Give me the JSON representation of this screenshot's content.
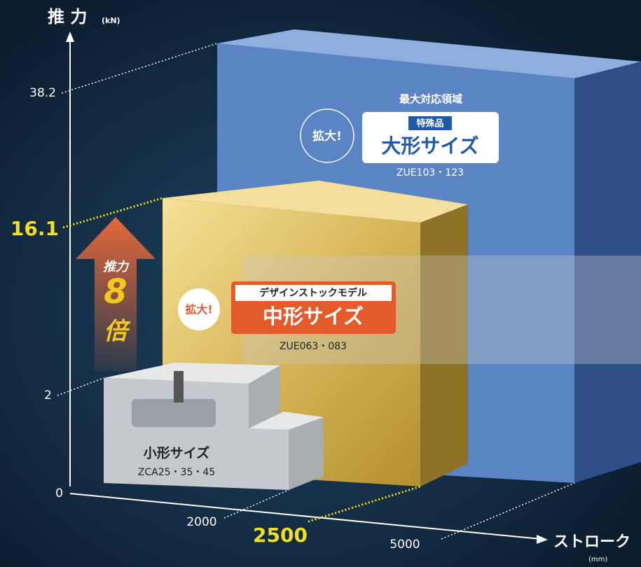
{
  "axes": {
    "y_title": "推 力",
    "y_unit": "(kN)",
    "y_labels": [
      "38.2",
      "16.1",
      "2",
      "0"
    ],
    "x_labels": [
      "2000",
      "2500",
      "5000"
    ],
    "x_title": "ストローク",
    "x_unit": "(mm)"
  },
  "large": {
    "caption": "最大対応領域",
    "badge": "拡大!",
    "tag": "特殊品",
    "name": "大形サイズ",
    "models": "ZUE103・123"
  },
  "medium": {
    "badge": "拡大!",
    "tag": "デザインストックモデル",
    "name": "中形サイズ",
    "models": "ZUE063・083"
  },
  "arrow": {
    "top": "推力",
    "number": "8",
    "bottom": "倍"
  },
  "small": {
    "name": "小形サイズ",
    "models": "ZCA25・35・45"
  }
}
